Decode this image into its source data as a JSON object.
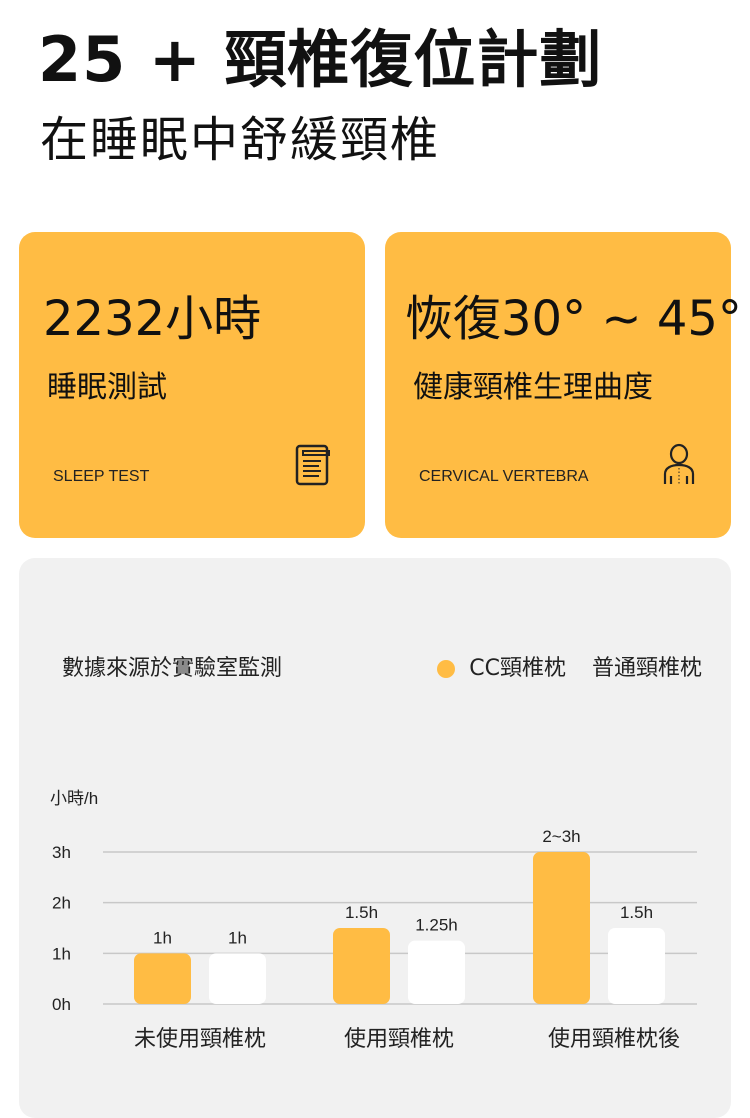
{
  "header": {
    "title": "25 + 頸椎復位計劃",
    "subtitle": "在睡眠中舒緩頸椎"
  },
  "cards": [
    {
      "value": "2232小時",
      "label": "睡眠測試",
      "english": "SLEEP TEST",
      "icon": "notebook-icon"
    },
    {
      "value": "恢復30° ~ 45°",
      "label": "健康頸椎生理曲度",
      "english": "CERVICAL VERTEBRA",
      "icon": "person-spine-icon"
    }
  ],
  "chart_panel": {
    "source": "數據來源於實驗室監測"
  },
  "colors": {
    "accent": "#ffbc44",
    "secondary": "#ffffff",
    "panel": "#f1f1f1"
  },
  "chart_data": {
    "type": "bar",
    "ylabel": "小時/h",
    "yticks": [
      "0h",
      "1h",
      "2h",
      "3h"
    ],
    "ylim": [
      0,
      3
    ],
    "grid": true,
    "legend_placement": "top-right",
    "categories": [
      "未使用頸椎枕",
      "使用頸椎枕",
      "使用頸椎枕後"
    ],
    "series": [
      {
        "name": "CC頸椎枕",
        "color": "#ffbc44",
        "values": [
          1,
          1.5,
          3
        ],
        "labels": [
          "1h",
          "1.5h",
          "2~3h"
        ]
      },
      {
        "name": "普通頸椎枕",
        "color": "#ffffff",
        "values": [
          1,
          1.25,
          1.5
        ],
        "labels": [
          "1h",
          "1.25h",
          "1.5h"
        ]
      }
    ]
  }
}
